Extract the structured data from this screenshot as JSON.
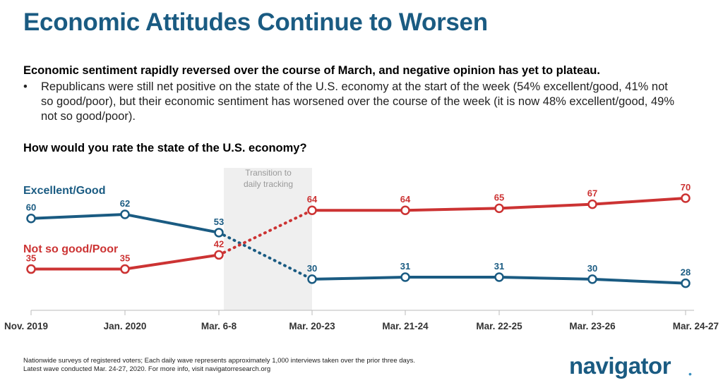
{
  "header": {
    "title": "Economic Attitudes Continue to Worsen",
    "subhead": "Economic sentiment rapidly reversed over the course of March, and negative opinion has yet to plateau.",
    "bullet_marker": "•",
    "bullet": "Republicans were still net positive on the state of the U.S. economy at the start of the week (54% excellent/good, 41% not so good/poor), but their economic sentiment has worsened over the course of the week (it is now 48% excellent/good, 49% not so good/poor).",
    "question": "How would you rate the state of the U.S. economy?"
  },
  "chart_data": {
    "type": "line",
    "categories": [
      "Nov. 2019",
      "Jan. 2020",
      "Mar. 6-8",
      "Mar. 20-23",
      "Mar. 21-24",
      "Mar. 22-25",
      "Mar. 23-26",
      "Mar. 24-27"
    ],
    "series": [
      {
        "name": "Excellent/Good",
        "color": "#1a5b82",
        "values": [
          60,
          62,
          53,
          30,
          31,
          31,
          30,
          28
        ]
      },
      {
        "name": "Not so good/Poor",
        "color": "#cc3333",
        "values": [
          35,
          35,
          42,
          64,
          64,
          65,
          67,
          70
        ]
      }
    ],
    "dotted_between": [
      2,
      3
    ],
    "shaded_band": {
      "from": 2,
      "to": 3,
      "label_line1": "Transition to",
      "label_line2": "daily tracking"
    },
    "ylim": [
      15,
      78
    ]
  },
  "footer": {
    "note_line1": "Nationwide surveys of registered voters; Each daily wave represents approximately 1,000 interviews taken over the prior three days.",
    "note_line2": "Latest wave conducted Mar. 24-27, 2020. For more info, visit navigatorresearch.org",
    "logo": "navigator",
    "logo_mark": "•"
  }
}
